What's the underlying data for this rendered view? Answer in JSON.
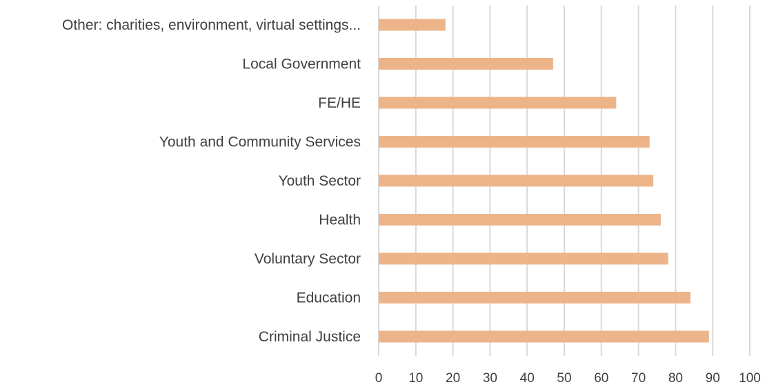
{
  "chart_data": {
    "type": "bar",
    "orientation": "horizontal",
    "categories": [
      "Other: charities, environment, virtual settings...",
      "Local Government",
      "FE/HE",
      "Youth and Community Services",
      "Youth Sector",
      "Health",
      "Voluntary Sector",
      "Education",
      "Criminal Justice"
    ],
    "values": [
      18,
      47,
      64,
      73,
      74,
      76,
      78,
      84,
      89
    ],
    "title": "",
    "xlabel": "",
    "ylabel": "",
    "xlim": [
      0,
      100
    ],
    "x_ticks": [
      "0",
      "10",
      "20",
      "30",
      "40",
      "50",
      "60",
      "70",
      "80",
      "90",
      "100"
    ],
    "grid": "vertical",
    "legend": "none",
    "bar_color": "#EDB48A",
    "grid_color": "#D9D9D9",
    "text_color": "#404040"
  }
}
